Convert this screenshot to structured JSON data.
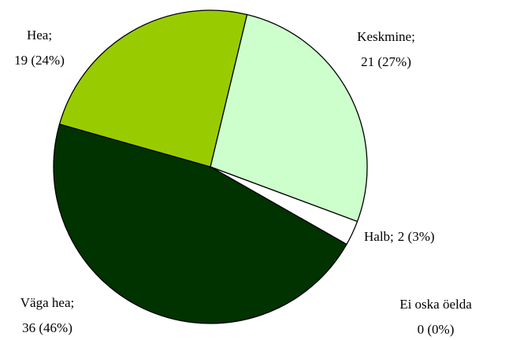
{
  "chart_data": {
    "type": "pie",
    "categories": [
      "Keskmine;",
      "Halb;",
      "Ei oska öelda",
      "Väga hea;",
      "Hea;"
    ],
    "values": [
      21,
      2,
      0,
      36,
      19
    ],
    "value_labels": [
      "21 (27%)",
      "2 (3%)",
      "0 (0%)",
      "36 (46%)",
      "19 (24%)"
    ],
    "colors": [
      "#ccffcc",
      "#ffffff",
      "#ffffff",
      "#003300",
      "#99cc00"
    ]
  }
}
